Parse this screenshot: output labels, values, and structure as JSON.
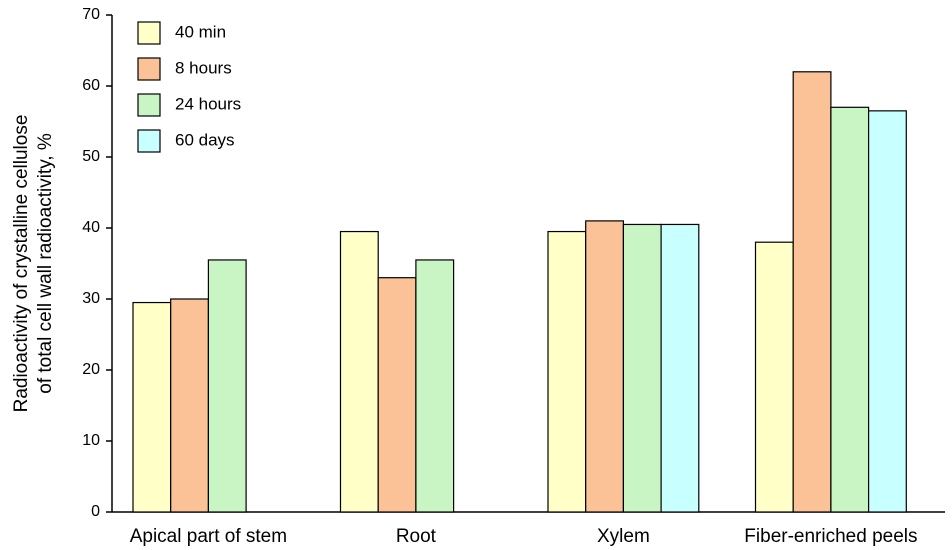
{
  "chart_data": {
    "type": "bar",
    "y_label": [
      "Radioactivity of crystalline cellulose",
      "of total cell wall radioactivity, %"
    ],
    "categories": [
      "Apical part of stem",
      "Root",
      "Xylem",
      "Fiber-enriched peels"
    ],
    "series": [
      {
        "name": "40 min",
        "color": "#ffffc8",
        "values": [
          29.5,
          39.5,
          39.5,
          38
        ]
      },
      {
        "name": "8 hours",
        "color": "#fac296",
        "values": [
          30,
          33,
          41,
          62
        ]
      },
      {
        "name": "24 hours",
        "color": "#c8f5c3",
        "values": [
          35.5,
          35.5,
          40.5,
          57
        ]
      },
      {
        "name": "60 days",
        "color": "#c8ffff",
        "values": [
          null,
          null,
          40.5,
          56.5
        ]
      }
    ],
    "ylim": [
      0,
      70
    ],
    "yticks": [
      0,
      10,
      20,
      30,
      40,
      50,
      60,
      70
    ],
    "grid": false,
    "legend": "top-left"
  }
}
